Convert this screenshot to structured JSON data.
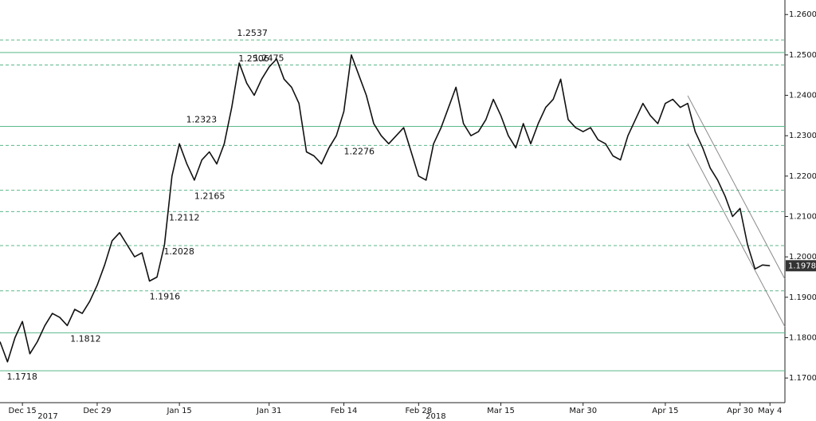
{
  "chart_data": {
    "type": "line",
    "x": [
      -3,
      -2,
      -1,
      0,
      1,
      2,
      3,
      4,
      5,
      6,
      7,
      8,
      9,
      10,
      11,
      12,
      13,
      14,
      15,
      16,
      17,
      18,
      19,
      20,
      21,
      22,
      23,
      24,
      25,
      26,
      27,
      28,
      29,
      30,
      31,
      32,
      33,
      34,
      35,
      36,
      37,
      38,
      39,
      40,
      41,
      42,
      43,
      44,
      45,
      46,
      47,
      48,
      49,
      50,
      51,
      52,
      53,
      54,
      55,
      56,
      57,
      58,
      59,
      60,
      61,
      62,
      63,
      64,
      65,
      66,
      67,
      68,
      69,
      70,
      71,
      72,
      73,
      74,
      75,
      76,
      77,
      78,
      79,
      80,
      81,
      82,
      83,
      84,
      85,
      86,
      87,
      88,
      89,
      90,
      91,
      92,
      93,
      94,
      95,
      96,
      97,
      98,
      99,
      100
    ],
    "series": [
      {
        "color": "#111111",
        "values": [
          1.179,
          1.174,
          1.18,
          1.184,
          1.176,
          1.179,
          1.183,
          1.186,
          1.185,
          1.183,
          1.187,
          1.186,
          1.189,
          1.193,
          1.198,
          1.204,
          1.206,
          1.203,
          1.2,
          1.201,
          1.194,
          1.195,
          1.203,
          1.22,
          1.228,
          1.223,
          1.219,
          1.224,
          1.226,
          1.223,
          1.228,
          1.237,
          1.248,
          1.243,
          1.24,
          1.244,
          1.247,
          1.249,
          1.244,
          1.242,
          1.238,
          1.226,
          1.225,
          1.223,
          1.227,
          1.23,
          1.236,
          1.25,
          1.245,
          1.24,
          1.233,
          1.23,
          1.228,
          1.23,
          1.232,
          1.226,
          1.22,
          1.219,
          1.228,
          1.232,
          1.237,
          1.242,
          1.233,
          1.23,
          1.231,
          1.234,
          1.239,
          1.235,
          1.23,
          1.227,
          1.233,
          1.228,
          1.233,
          1.237,
          1.239,
          1.244,
          1.234,
          1.232,
          1.231,
          1.232,
          1.229,
          1.228,
          1.225,
          1.224,
          1.23,
          1.234,
          1.238,
          1.235,
          1.233,
          1.238,
          1.239,
          1.237,
          1.238,
          1.231,
          1.227,
          1.222,
          1.219,
          1.215,
          1.21,
          1.212,
          1.203,
          1.197,
          1.198,
          1.1978
        ]
      }
    ],
    "xlim": [
      -3,
      102
    ],
    "xticks": [
      {
        "value": 0,
        "label": "Dec 15"
      },
      {
        "value": 10,
        "label": "Dec 29"
      },
      {
        "value": 21,
        "label": "Jan 15"
      },
      {
        "value": 33,
        "label": "Jan 31"
      },
      {
        "value": 43,
        "label": "Feb 14"
      },
      {
        "value": 53,
        "label": "Feb 28"
      },
      {
        "value": 64,
        "label": "Mar 15"
      },
      {
        "value": 75,
        "label": "Mar 30"
      },
      {
        "value": 86,
        "label": "Apr 15"
      },
      {
        "value": 96,
        "label": "Apr 30"
      },
      {
        "value": 100,
        "label": "May 4"
      }
    ],
    "year_labels": [
      {
        "value": 3.4,
        "label": "2017"
      },
      {
        "value": 55.3,
        "label": "2018"
      }
    ],
    "ylim": [
      1.1639,
      1.2636
    ],
    "yticks": [
      {
        "value": 1.17,
        "label": "1.1700"
      },
      {
        "value": 1.18,
        "label": "1.1800"
      },
      {
        "value": 1.19,
        "label": "1.1900"
      },
      {
        "value": 1.2,
        "label": "1.2000"
      },
      {
        "value": 1.21,
        "label": "1.2100"
      },
      {
        "value": 1.22,
        "label": "1.2200"
      },
      {
        "value": 1.23,
        "label": "1.2300"
      },
      {
        "value": 1.24,
        "label": "1.2400"
      },
      {
        "value": 1.25,
        "label": "1.2500"
      },
      {
        "value": 1.26,
        "label": "1.2600"
      }
    ],
    "levels": [
      {
        "value": 1.2537,
        "style": "dashed",
        "x": 28.7,
        "label_side": "above"
      },
      {
        "value": 1.2506,
        "style": "solid",
        "x": 28.9,
        "label_side": "below"
      },
      {
        "value": 1.2475,
        "style": "dashed",
        "x": 30.9,
        "label_side": "above"
      },
      {
        "value": 1.2323,
        "style": "solid",
        "x": 21.9,
        "label_side": "above"
      },
      {
        "value": 1.2276,
        "style": "dashed",
        "x": 43,
        "label_side": "below"
      },
      {
        "value": 1.2165,
        "style": "dashed",
        "x": 23,
        "label_side": "below"
      },
      {
        "value": 1.2112,
        "style": "dashed",
        "x": 19.6,
        "label_side": "below"
      },
      {
        "value": 1.2028,
        "style": "dashed",
        "x": 18.9,
        "label_side": "below"
      },
      {
        "value": 1.1916,
        "style": "dashed",
        "x": 17,
        "label_side": "below"
      },
      {
        "value": 1.1812,
        "style": "solid",
        "x": 6.4,
        "label_side": "below"
      },
      {
        "value": 1.1718,
        "style": "solid",
        "x": -2.1,
        "label_side": "below"
      }
    ],
    "level_color": "#5cb88a",
    "trend_lines": [
      {
        "x": [
          89,
          102
        ],
        "y": [
          1.2399,
          1.1945
        ]
      },
      {
        "x": [
          89,
          102
        ],
        "y": [
          1.228,
          1.1827
        ]
      }
    ],
    "trend_color": "#8a8a8a",
    "last_value": 1.1978
  }
}
